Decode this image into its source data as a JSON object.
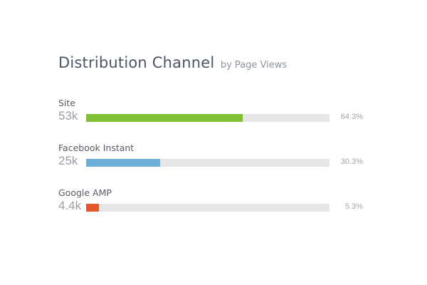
{
  "title": "Distribution Channel",
  "subtitle": "by Page Views",
  "chart_data": {
    "type": "bar",
    "orientation": "horizontal",
    "title": "Distribution Channel",
    "subtitle": "by Page Views",
    "categories": [
      "Site",
      "Facebook Instant",
      "Google AMP"
    ],
    "value_labels": [
      "53k",
      "25k",
      "4.4k"
    ],
    "values": [
      53000,
      25000,
      4400
    ],
    "percent_labels": [
      "64.3%",
      "30.3%",
      "5.3%"
    ],
    "percents": [
      64.3,
      30.3,
      5.3
    ],
    "colors": [
      "#80c033",
      "#6baed6",
      "#e4562b"
    ],
    "track_color": "#e6e6e6",
    "grid": false,
    "legend": "none"
  },
  "channels": [
    {
      "name": "Site",
      "value": "53k",
      "percent": "64.3%"
    },
    {
      "name": "Facebook Instant",
      "value": "25k",
      "percent": "30.3%"
    },
    {
      "name": "Google AMP",
      "value": "4.4k",
      "percent": "5.3%"
    }
  ]
}
